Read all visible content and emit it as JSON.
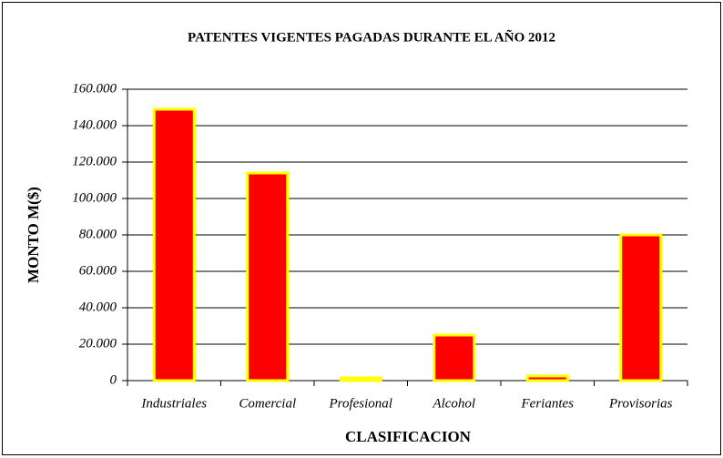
{
  "chart_data": {
    "type": "bar",
    "title": "PATENTES VIGENTES PAGADAS DURANTE EL AÑO 2012",
    "x_label": "CLASIFICACION",
    "y_label": "MONTO M($)",
    "categories": [
      "Industriales",
      "Comercial",
      "Profesional",
      "Alcohol",
      "Feriantes",
      "Provisorias"
    ],
    "values": [
      149000,
      114000,
      1500,
      25000,
      2500,
      80000
    ],
    "color": "#ff0000",
    "edge_color": "#ffff00",
    "ylim": [
      0,
      160000
    ],
    "yticks": [
      0,
      {
        "value": 20000,
        "label": "20.000"
      },
      {
        "value": 40000,
        "label": "40.000"
      },
      {
        "value": 60000,
        "label": "60.000"
      },
      {
        "value": 80000,
        "label": "80.000"
      },
      {
        "value": 100000,
        "label": "100.000"
      },
      {
        "value": 120000,
        "label": "120.000"
      },
      {
        "value": 140000,
        "label": "140.000"
      },
      {
        "value": 160000,
        "label": "160.000"
      }
    ],
    "grid": true
  }
}
